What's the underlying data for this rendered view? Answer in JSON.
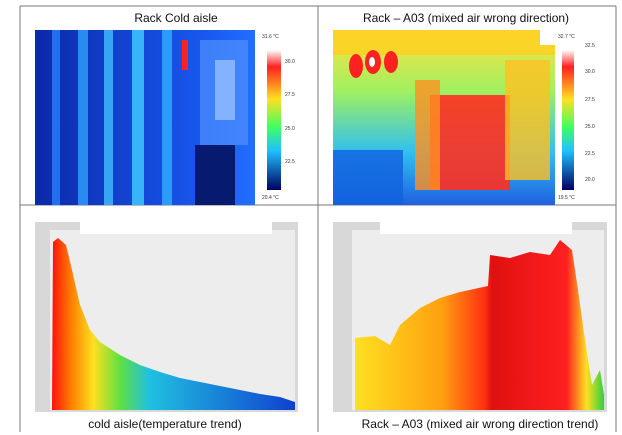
{
  "panels": [
    {
      "caption": "Rack Cold aisle",
      "scale": {
        "max": "31.6 °C",
        "ticks": [
          "30.0",
          "27.5",
          "25.0",
          "22.5"
        ],
        "min": "20.4 °C"
      }
    },
    {
      "caption": "Rack – A03 (mixed air wrong direction)",
      "scale": {
        "max": "32.7 °C",
        "ticks": [
          "32.5",
          "30.0",
          "27.5",
          "25.0",
          "22.5",
          "20.0"
        ],
        "min": "19.5 °C"
      }
    }
  ],
  "trends": [
    {
      "caption": "cold aisle(temperature trend)"
    },
    {
      "caption": "Rack – A03 (mixed air wrong direction trend)"
    }
  ]
}
